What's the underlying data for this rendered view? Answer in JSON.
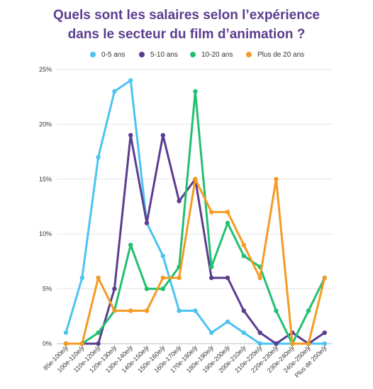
{
  "chart_data": {
    "type": "line",
    "title": "Quels sont les salaires selon l’expérience\ndans le secteur du film d’animation ?",
    "categories": [
      "85e-100e/jr",
      "100e-110e/jr",
      "110e-120e/jr",
      "120e-130e/jr",
      "130e-140e/jr",
      "140e-150e/jr",
      "150e-160e/jr",
      "160e-170e/jr",
      "170e-180e/jr",
      "180e-190e/jr",
      "190e-200e/jr",
      "200e-210e/jr",
      "210e-220e/jr",
      "220e-230e/jr",
      "230e-240e/jr",
      "240e-250e/jr",
      "Plus de 250e/jr"
    ],
    "yticks": [
      "0%",
      "5%",
      "10%",
      "15%",
      "20%",
      "25%"
    ],
    "ylim": [
      0,
      25
    ],
    "grid": true,
    "legend_position": "top",
    "series": [
      {
        "name": "0-5 ans",
        "color": "#4cc3f1",
        "values": [
          1,
          6,
          17,
          23,
          24,
          11,
          8,
          3,
          3,
          1,
          2,
          1,
          0,
          0,
          0,
          0,
          0
        ]
      },
      {
        "name": "5-10 ans",
        "color": "#5b3d8f",
        "values": [
          0,
          0,
          0,
          5,
          19,
          11,
          19,
          13,
          15,
          6,
          6,
          3,
          1,
          0,
          1,
          0,
          1
        ]
      },
      {
        "name": "10-20 ans",
        "color": "#22c06e",
        "values": [
          0,
          0,
          1,
          3,
          9,
          5,
          5,
          7,
          23,
          7,
          11,
          8,
          7,
          3,
          0,
          3,
          6
        ]
      },
      {
        "name": "Plus de 20 ans",
        "color": "#f59a23",
        "values": [
          0,
          0,
          6,
          3,
          3,
          3,
          6,
          6,
          15,
          12,
          12,
          9,
          6,
          15,
          0,
          0,
          6
        ]
      }
    ]
  }
}
